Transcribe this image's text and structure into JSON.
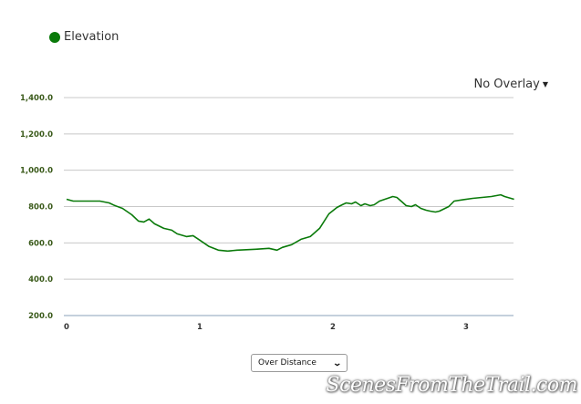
{
  "legend": {
    "label": "Elevation",
    "color": "#0a7a0a"
  },
  "overlay_menu": {
    "label": "No Overlay",
    "caret": "▼"
  },
  "x_mode_select": {
    "selected": "Over Distance"
  },
  "watermark": "ScenesFromTheTrail.com",
  "chart_data": {
    "type": "line",
    "title": "",
    "xlabel": "",
    "ylabel": "",
    "legend": [
      "Elevation"
    ],
    "legend_position": "top-left",
    "grid": true,
    "xlim": [
      0,
      3.36
    ],
    "ylim": [
      200,
      1400
    ],
    "y_ticks": [
      "1,400.0",
      "1,200.0",
      "1,000.0",
      "800.0",
      "600.0",
      "400.0",
      "200.0"
    ],
    "x_ticks": [
      "0",
      "1",
      "2",
      "3"
    ],
    "series": [
      {
        "name": "Elevation",
        "color": "#0a7a0a",
        "x": [
          0,
          0.05,
          0.25,
          0.32,
          0.36,
          0.42,
          0.49,
          0.54,
          0.58,
          0.62,
          0.66,
          0.73,
          0.79,
          0.83,
          0.9,
          0.95,
          1.0,
          1.07,
          1.14,
          1.21,
          1.28,
          1.42,
          1.52,
          1.58,
          1.62,
          1.69,
          1.76,
          1.83,
          1.9,
          1.97,
          2.03,
          2.07,
          2.1,
          2.14,
          2.17,
          2.21,
          2.24,
          2.28,
          2.31,
          2.35,
          2.41,
          2.45,
          2.48,
          2.52,
          2.55,
          2.59,
          2.62,
          2.66,
          2.7,
          2.73,
          2.77,
          2.8,
          2.87,
          2.91,
          2.98,
          3.05,
          3.12,
          3.19,
          3.26,
          3.29,
          3.36
        ],
        "values": [
          840,
          830,
          830,
          820,
          806,
          790,
          755,
          720,
          715,
          731,
          705,
          680,
          670,
          650,
          635,
          640,
          615,
          580,
          560,
          555,
          560,
          565,
          570,
          560,
          575,
          590,
          620,
          635,
          680,
          760,
          795,
          810,
          820,
          815,
          825,
          805,
          815,
          805,
          810,
          830,
          845,
          855,
          850,
          825,
          805,
          800,
          810,
          790,
          780,
          775,
          770,
          775,
          800,
          830,
          838,
          845,
          850,
          855,
          865,
          855,
          840
        ]
      }
    ]
  }
}
